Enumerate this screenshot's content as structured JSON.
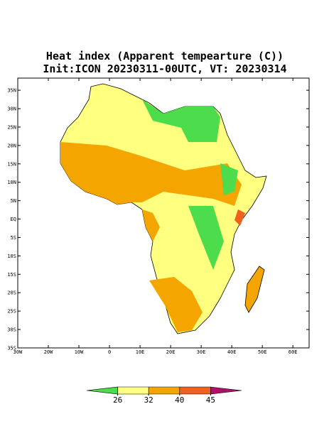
{
  "title": "Heat index (Apparent tempearture (C))",
  "subtitle": "Init:ICON 20230311-00UTC, VT: 20230314",
  "map": {
    "lon_range": [
      -30,
      65.3
    ],
    "lat_range": [
      -35,
      38.3
    ],
    "lon_ticks": [
      {
        "value": -30,
        "label": "30W"
      },
      {
        "value": -20,
        "label": "20W"
      },
      {
        "value": -10,
        "label": "10W"
      },
      0,
      {
        "value": 10,
        "label": "10E"
      },
      {
        "value": 20,
        "label": "20E"
      },
      {
        "value": 30,
        "label": "30E"
      },
      {
        "value": 40,
        "label": "40E"
      },
      {
        "value": 50,
        "label": "50E"
      },
      {
        "value": 60,
        "label": "60E"
      }
    ],
    "lat_ticks": [
      {
        "value": 35,
        "label": "35N"
      },
      {
        "value": 30,
        "label": "30N"
      },
      {
        "value": 25,
        "label": "25N"
      },
      {
        "value": 20,
        "label": "20N"
      },
      {
        "value": 15,
        "label": "15N"
      },
      {
        "value": 10,
        "label": "10N"
      },
      {
        "value": 5,
        "label": "5N"
      },
      {
        "value": 0,
        "label": "EQ"
      },
      {
        "value": -5,
        "label": "5S"
      },
      {
        "value": -10,
        "label": "10S"
      },
      {
        "value": -15,
        "label": "15S"
      },
      {
        "value": -20,
        "label": "20S"
      },
      {
        "value": -25,
        "label": "25S"
      },
      {
        "value": -30,
        "label": "30S"
      },
      {
        "value": -35,
        "label": "35S"
      }
    ]
  },
  "colorbar": {
    "colors": [
      "#4cdc4c",
      "#ffff80",
      "#f5a500",
      "#f0601e",
      "#b0106a"
    ],
    "ticks": [
      26,
      32,
      40,
      45
    ]
  }
}
